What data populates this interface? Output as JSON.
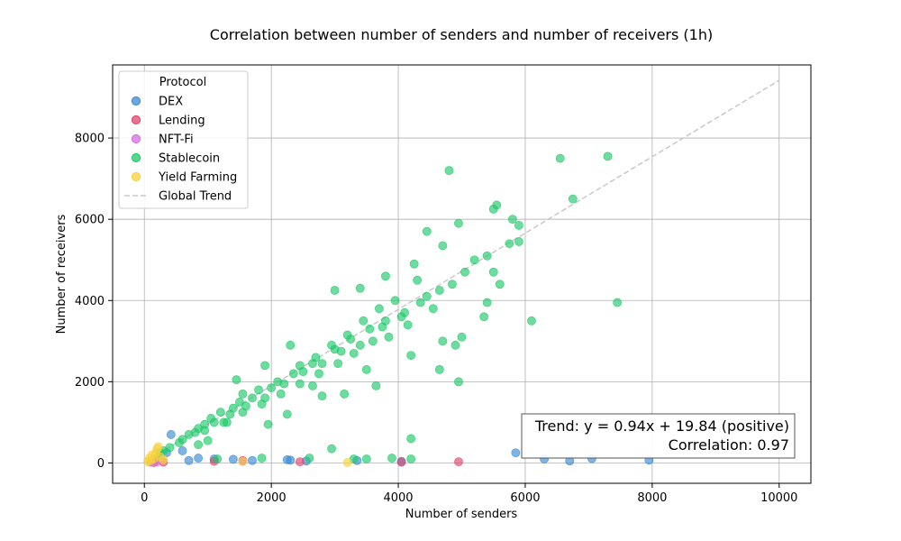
{
  "chart_data": {
    "type": "scatter",
    "title": "Correlation between number of senders and number of receivers (1h)",
    "xlabel": "Number of senders",
    "ylabel": "Number of receivers",
    "xlim": [
      -500,
      10500
    ],
    "ylim": [
      -500,
      9800
    ],
    "xticks": [
      0,
      2000,
      4000,
      6000,
      8000,
      10000
    ],
    "yticks": [
      0,
      2000,
      4000,
      6000,
      8000
    ],
    "grid": true,
    "legend": {
      "title": "Protocol",
      "placement": "top-left",
      "entries": [
        "DEX",
        "Lending",
        "NFT-Fi",
        "Stablecoin",
        "Yield Farming",
        "Global Trend"
      ]
    },
    "colors": {
      "DEX": "#3b8bd1",
      "Lending": "#e0456b",
      "NFT-Fi": "#d36fe0",
      "Stablecoin": "#1ec96a",
      "Yield Farming": "#f7d23a",
      "Global Trend": "#c8c8c8"
    },
    "trend": {
      "slope": 0.94,
      "intercept": 19.84,
      "x_range": [
        0,
        10000
      ]
    },
    "annotation": {
      "line1": "Trend: y = 0.94x + 19.84 (positive)",
      "line2": "Correlation: 0.97",
      "placement": "bottom-right"
    },
    "series": [
      {
        "name": "DEX",
        "points": [
          [
            420,
            700
          ],
          [
            600,
            300
          ],
          [
            850,
            120
          ],
          [
            1100,
            100
          ],
          [
            1400,
            90
          ],
          [
            1700,
            60
          ],
          [
            2250,
            80
          ],
          [
            2300,
            70
          ],
          [
            2550,
            50
          ],
          [
            3350,
            60
          ],
          [
            4050,
            40
          ],
          [
            5850,
            250
          ],
          [
            6300,
            100
          ],
          [
            6700,
            50
          ],
          [
            7050,
            110
          ],
          [
            7950,
            70
          ],
          [
            250,
            150
          ],
          [
            150,
            80
          ],
          [
            350,
            250
          ],
          [
            700,
            60
          ]
        ]
      },
      {
        "name": "Lending",
        "points": [
          [
            1100,
            40
          ],
          [
            1550,
            60
          ],
          [
            2450,
            30
          ],
          [
            4050,
            20
          ],
          [
            4950,
            30
          ],
          [
            300,
            20
          ],
          [
            150,
            10
          ]
        ]
      },
      {
        "name": "NFT-Fi",
        "points": [
          [
            1550,
            40
          ],
          [
            200,
            30
          ],
          [
            100,
            20
          ]
        ]
      },
      {
        "name": "Stablecoin",
        "points": [
          [
            4800,
            7200
          ],
          [
            6550,
            7500
          ],
          [
            7300,
            7550
          ],
          [
            6750,
            6500
          ],
          [
            5800,
            6000
          ],
          [
            5900,
            5850
          ],
          [
            5550,
            6350
          ],
          [
            5500,
            6250
          ],
          [
            5900,
            5450
          ],
          [
            5750,
            5400
          ],
          [
            4700,
            5350
          ],
          [
            4950,
            5900
          ],
          [
            4450,
            5700
          ],
          [
            5400,
            5100
          ],
          [
            5500,
            4700
          ],
          [
            6100,
            3500
          ],
          [
            7450,
            3950
          ],
          [
            5600,
            4400
          ],
          [
            5400,
            3950
          ],
          [
            5350,
            3600
          ],
          [
            5000,
            3100
          ],
          [
            4900,
            2900
          ],
          [
            4700,
            3000
          ],
          [
            4650,
            2300
          ],
          [
            4950,
            2000
          ],
          [
            4200,
            2650
          ],
          [
            3650,
            1900
          ],
          [
            3500,
            2300
          ],
          [
            3150,
            1700
          ],
          [
            2800,
            1650
          ],
          [
            2650,
            1900
          ],
          [
            2250,
            1200
          ],
          [
            1950,
            950
          ],
          [
            1550,
            1700
          ],
          [
            1300,
            1000
          ],
          [
            1000,
            550
          ],
          [
            850,
            450
          ],
          [
            1150,
            100
          ],
          [
            1850,
            120
          ],
          [
            2600,
            120
          ],
          [
            2950,
            350
          ],
          [
            3300,
            100
          ],
          [
            3500,
            100
          ],
          [
            3900,
            120
          ],
          [
            4200,
            100
          ],
          [
            4200,
            600
          ],
          [
            4050,
            3600
          ],
          [
            3750,
            3350
          ],
          [
            3400,
            2900
          ],
          [
            3100,
            2750
          ],
          [
            2800,
            2450
          ],
          [
            2500,
            2250
          ],
          [
            2200,
            1950
          ],
          [
            1900,
            1600
          ],
          [
            1600,
            1400
          ],
          [
            1350,
            1200
          ],
          [
            1100,
            1000
          ],
          [
            850,
            850
          ],
          [
            600,
            580
          ],
          [
            400,
            380
          ],
          [
            250,
            250
          ],
          [
            4450,
            4100
          ],
          [
            4300,
            4500
          ],
          [
            3950,
            4000
          ],
          [
            3700,
            3800
          ],
          [
            3450,
            3500
          ],
          [
            3200,
            3150
          ],
          [
            2950,
            2900
          ],
          [
            2700,
            2600
          ],
          [
            2450,
            2400
          ],
          [
            2100,
            2000
          ],
          [
            1800,
            1800
          ],
          [
            1500,
            1500
          ],
          [
            1200,
            1250
          ],
          [
            950,
            950
          ],
          [
            700,
            700
          ],
          [
            4550,
            3800
          ],
          [
            4150,
            3400
          ],
          [
            3850,
            3100
          ],
          [
            3600,
            3000
          ],
          [
            3300,
            2700
          ],
          [
            3050,
            2450
          ],
          [
            2750,
            2200
          ],
          [
            2450,
            1950
          ],
          [
            2150,
            1700
          ],
          [
            1850,
            1450
          ],
          [
            1550,
            1250
          ],
          [
            1250,
            1000
          ],
          [
            950,
            800
          ],
          [
            5050,
            4700
          ],
          [
            5200,
            5000
          ],
          [
            4850,
            4400
          ],
          [
            4650,
            4250
          ],
          [
            4350,
            3950
          ],
          [
            4100,
            3700
          ],
          [
            3800,
            3500
          ],
          [
            3550,
            3300
          ],
          [
            3250,
            3050
          ],
          [
            3000,
            2800
          ],
          [
            2650,
            2450
          ],
          [
            2350,
            2200
          ],
          [
            2000,
            1850
          ],
          [
            1700,
            1600
          ],
          [
            1400,
            1350
          ],
          [
            1050,
            1100
          ],
          [
            800,
            750
          ],
          [
            550,
            500
          ],
          [
            300,
            300
          ],
          [
            3000,
            4250
          ],
          [
            3400,
            4300
          ],
          [
            3800,
            4600
          ],
          [
            4250,
            4900
          ],
          [
            2300,
            2900
          ],
          [
            1900,
            2400
          ],
          [
            1450,
            2050
          ]
        ]
      },
      {
        "name": "Yield Farming",
        "points": [
          [
            200,
            350
          ],
          [
            250,
            150
          ],
          [
            150,
            100
          ],
          [
            100,
            60
          ],
          [
            300,
            80
          ],
          [
            50,
            30
          ],
          [
            1550,
            40
          ],
          [
            3200,
            10
          ],
          [
            220,
            400
          ],
          [
            180,
            250
          ],
          [
            120,
            200
          ],
          [
            80,
            120
          ]
        ]
      }
    ]
  }
}
